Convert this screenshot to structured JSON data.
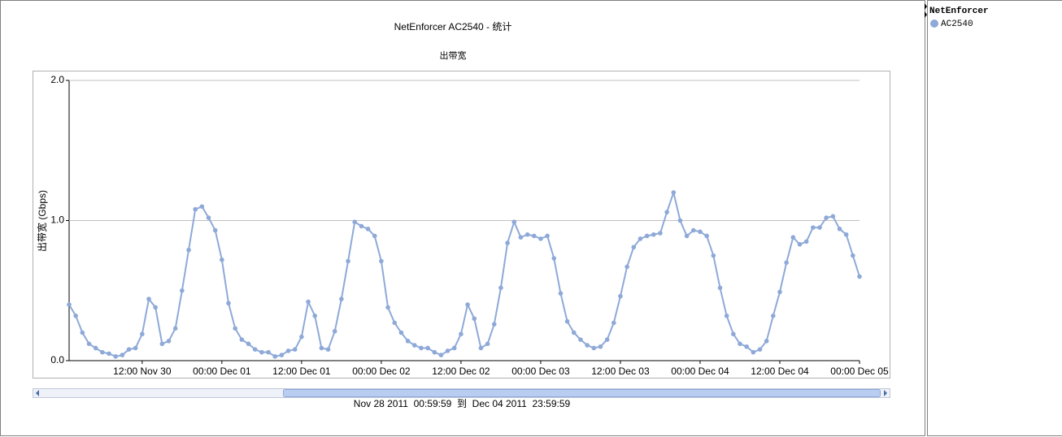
{
  "chart_data": {
    "type": "line",
    "title": "NetEnforcer AC2540 - 统计",
    "subtitle": "出带宽",
    "y_label": "出带宽 (Gbps)",
    "range_label": "Nov 28 2011  00:59:59  到  Dec 04 2011  23:59:59",
    "legend_title": "NetEnforcer",
    "x": [
      "2011-11-30T01:00",
      "2011-11-30T02:00",
      "2011-11-30T03:00",
      "2011-11-30T04:00",
      "2011-11-30T05:00",
      "2011-11-30T06:00",
      "2011-11-30T07:00",
      "2011-11-30T08:00",
      "2011-11-30T09:00",
      "2011-11-30T10:00",
      "2011-11-30T11:00",
      "2011-11-30T12:00",
      "2011-11-30T13:00",
      "2011-11-30T14:00",
      "2011-11-30T15:00",
      "2011-11-30T16:00",
      "2011-11-30T17:00",
      "2011-11-30T18:00",
      "2011-11-30T19:00",
      "2011-11-30T20:00",
      "2011-11-30T21:00",
      "2011-11-30T22:00",
      "2011-11-30T23:00",
      "2011-12-01T00:00",
      "2011-12-01T01:00",
      "2011-12-01T02:00",
      "2011-12-01T03:00",
      "2011-12-01T04:00",
      "2011-12-01T05:00",
      "2011-12-01T06:00",
      "2011-12-01T07:00",
      "2011-12-01T08:00",
      "2011-12-01T09:00",
      "2011-12-01T10:00",
      "2011-12-01T11:00",
      "2011-12-01T12:00",
      "2011-12-01T13:00",
      "2011-12-01T14:00",
      "2011-12-01T15:00",
      "2011-12-01T16:00",
      "2011-12-01T17:00",
      "2011-12-01T18:00",
      "2011-12-01T19:00",
      "2011-12-01T20:00",
      "2011-12-01T21:00",
      "2011-12-01T22:00",
      "2011-12-01T23:00",
      "2011-12-02T00:00",
      "2011-12-02T01:00",
      "2011-12-02T02:00",
      "2011-12-02T03:00",
      "2011-12-02T04:00",
      "2011-12-02T05:00",
      "2011-12-02T06:00",
      "2011-12-02T07:00",
      "2011-12-02T08:00",
      "2011-12-02T09:00",
      "2011-12-02T10:00",
      "2011-12-02T11:00",
      "2011-12-02T12:00",
      "2011-12-02T13:00",
      "2011-12-02T14:00",
      "2011-12-02T15:00",
      "2011-12-02T16:00",
      "2011-12-02T17:00",
      "2011-12-02T18:00",
      "2011-12-02T19:00",
      "2011-12-02T20:00",
      "2011-12-02T21:00",
      "2011-12-02T22:00",
      "2011-12-02T23:00",
      "2011-12-03T00:00",
      "2011-12-03T01:00",
      "2011-12-03T02:00",
      "2011-12-03T03:00",
      "2011-12-03T04:00",
      "2011-12-03T05:00",
      "2011-12-03T06:00",
      "2011-12-03T07:00",
      "2011-12-03T08:00",
      "2011-12-03T09:00",
      "2011-12-03T10:00",
      "2011-12-03T11:00",
      "2011-12-03T12:00",
      "2011-12-03T13:00",
      "2011-12-03T14:00",
      "2011-12-03T15:00",
      "2011-12-03T16:00",
      "2011-12-03T17:00",
      "2011-12-03T18:00",
      "2011-12-03T19:00",
      "2011-12-03T20:00",
      "2011-12-03T21:00",
      "2011-12-03T22:00",
      "2011-12-03T23:00",
      "2011-12-04T00:00",
      "2011-12-04T01:00",
      "2011-12-04T02:00",
      "2011-12-04T03:00",
      "2011-12-04T04:00",
      "2011-12-04T05:00",
      "2011-12-04T06:00",
      "2011-12-04T07:00",
      "2011-12-04T08:00",
      "2011-12-04T09:00",
      "2011-12-04T10:00",
      "2011-12-04T11:00",
      "2011-12-04T12:00",
      "2011-12-04T13:00",
      "2011-12-04T14:00",
      "2011-12-04T15:00",
      "2011-12-04T16:00",
      "2011-12-04T17:00",
      "2011-12-04T18:00",
      "2011-12-04T19:00",
      "2011-12-04T20:00",
      "2011-12-04T21:00",
      "2011-12-04T22:00",
      "2011-12-04T23:00",
      "2011-12-05T00:00"
    ],
    "series": [
      {
        "name": "AC2540",
        "color": "#8ea9d8",
        "values": [
          0.4,
          0.32,
          0.2,
          0.12,
          0.09,
          0.06,
          0.05,
          0.03,
          0.04,
          0.08,
          0.09,
          0.19,
          0.44,
          0.38,
          0.12,
          0.14,
          0.23,
          0.5,
          0.79,
          1.08,
          1.1,
          1.02,
          0.93,
          0.72,
          0.41,
          0.23,
          0.15,
          0.12,
          0.08,
          0.06,
          0.06,
          0.03,
          0.04,
          0.07,
          0.08,
          0.17,
          0.42,
          0.32,
          0.09,
          0.08,
          0.21,
          0.44,
          0.71,
          0.99,
          0.96,
          0.94,
          0.89,
          0.71,
          0.38,
          0.27,
          0.2,
          0.14,
          0.11,
          0.09,
          0.09,
          0.06,
          0.04,
          0.07,
          0.09,
          0.19,
          0.4,
          0.3,
          0.09,
          0.12,
          0.26,
          0.52,
          0.84,
          0.99,
          0.88,
          0.9,
          0.89,
          0.87,
          0.89,
          0.73,
          0.48,
          0.28,
          0.2,
          0.15,
          0.11,
          0.09,
          0.1,
          0.15,
          0.27,
          0.46,
          0.67,
          0.81,
          0.87,
          0.89,
          0.9,
          0.91,
          1.06,
          1.2,
          1.0,
          0.89,
          0.93,
          0.92,
          0.89,
          0.75,
          0.52,
          0.32,
          0.19,
          0.12,
          0.1,
          0.06,
          0.08,
          0.14,
          0.32,
          0.49,
          0.7,
          0.88,
          0.83,
          0.85,
          0.95,
          0.95,
          1.02,
          1.03,
          0.94,
          0.9,
          0.75,
          0.6
        ]
      }
    ],
    "xlim": [
      "2011-11-30T01:00",
      "2011-12-05T00:00"
    ],
    "xticks": [
      {
        "value": "2011-11-30T12:00",
        "label": "12:00 Nov 30"
      },
      {
        "value": "2011-12-01T00:00",
        "label": "00:00 Dec 01"
      },
      {
        "value": "2011-12-01T12:00",
        "label": "12:00 Dec 01"
      },
      {
        "value": "2011-12-02T00:00",
        "label": "00:00 Dec 02"
      },
      {
        "value": "2011-12-02T12:00",
        "label": "12:00 Dec 02"
      },
      {
        "value": "2011-12-03T00:00",
        "label": "00:00 Dec 03"
      },
      {
        "value": "2011-12-03T12:00",
        "label": "12:00 Dec 03"
      },
      {
        "value": "2011-12-04T00:00",
        "label": "00:00 Dec 04"
      },
      {
        "value": "2011-12-04T12:00",
        "label": "12:00 Dec 04"
      },
      {
        "value": "2011-12-05T00:00",
        "label": "00:00 Dec 05"
      }
    ],
    "ylim": [
      0,
      2
    ],
    "yticks": [
      {
        "value": 0,
        "label": "0.0"
      },
      {
        "value": 1,
        "label": "1.0"
      },
      {
        "value": 2,
        "label": "2.0"
      }
    ],
    "grid": true
  }
}
